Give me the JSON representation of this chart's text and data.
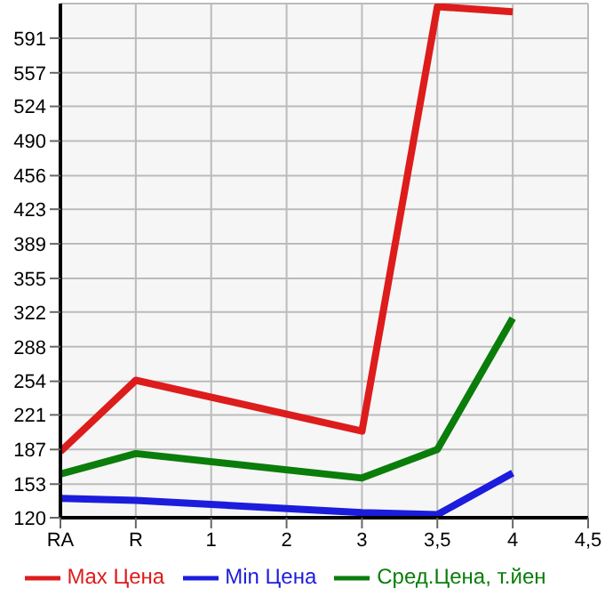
{
  "chart_data": {
    "type": "line",
    "categories": [
      "RA",
      "R",
      "1",
      "2",
      "3",
      "3,5",
      "4",
      "4,5"
    ],
    "series": [
      {
        "name": "Max Цена",
        "color": "#dd1c1c",
        "values": [
          185,
          255,
          null,
          null,
          205,
          622,
          617,
          null
        ]
      },
      {
        "name": "Min Цена",
        "color": "#1c1cdd",
        "values": [
          139,
          137,
          null,
          null,
          125,
          123,
          164,
          null
        ]
      },
      {
        "name": "Сред.Цена, т.йен",
        "color": "#0a7d0a",
        "values": [
          163,
          183,
          null,
          null,
          159,
          187,
          316,
          null
        ]
      }
    ],
    "ylim": [
      120,
      625
    ],
    "yticks": [
      120,
      153,
      187,
      221,
      254,
      288,
      322,
      355,
      389,
      423,
      456,
      490,
      524,
      557,
      591
    ],
    "grid": true,
    "legend": "bottom",
    "marker": "none",
    "line_style": "solid"
  }
}
